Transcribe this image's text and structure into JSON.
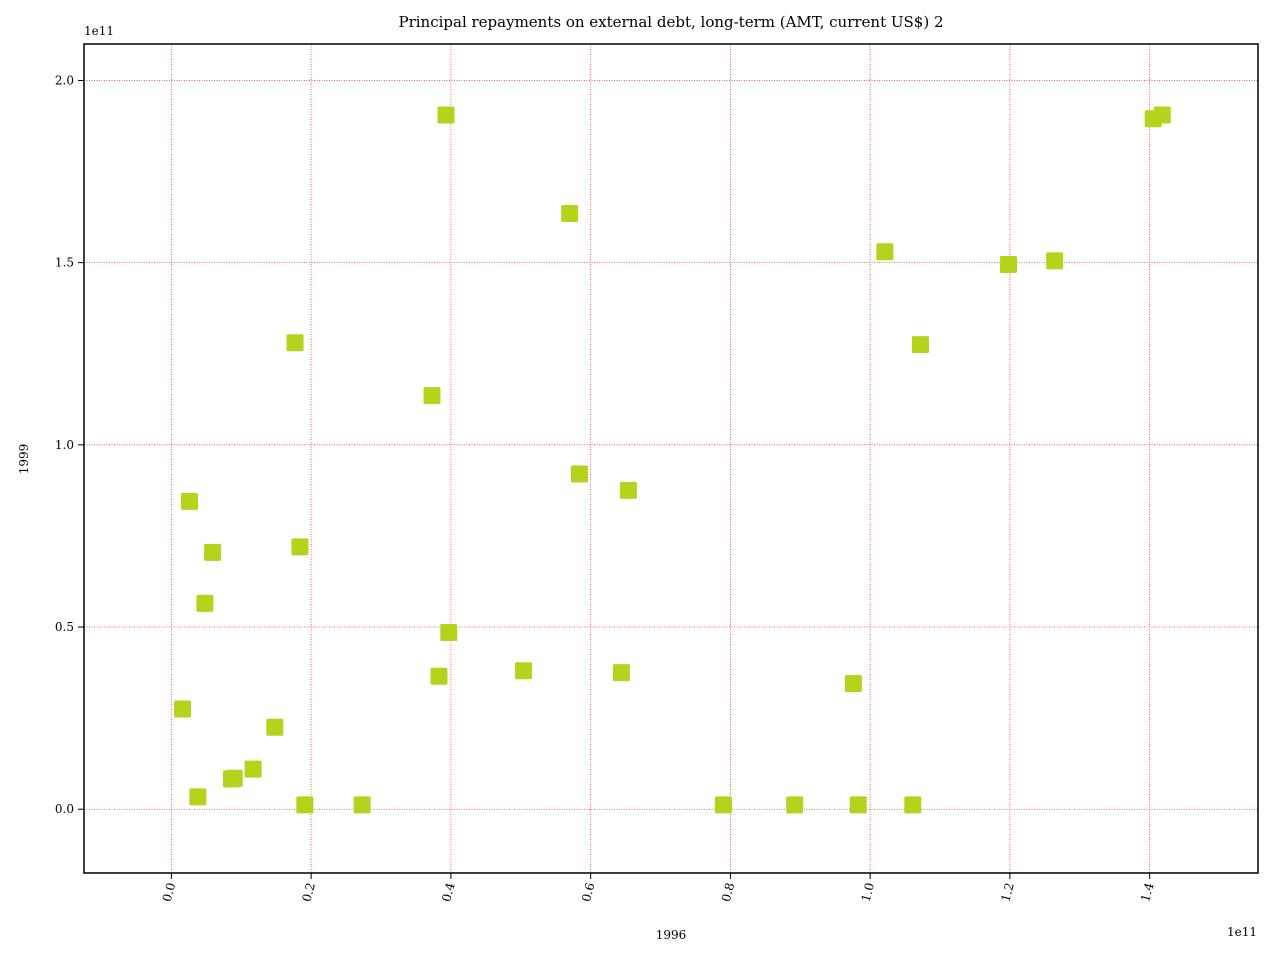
{
  "chart_data": {
    "type": "scatter",
    "title": "Principal repayments on external debt, long-term (AMT, current US$) 2",
    "xlabel": "1996",
    "ylabel": "1999",
    "x_offset_label": "1e11",
    "y_offset_label": "1e11",
    "xlim": [
      -12500000000.0,
      155500000000.0
    ],
    "ylim": [
      -17500000000.0,
      210000000000.0
    ],
    "x_ticks": [
      0,
      20000000000.0,
      40000000000.0,
      60000000000.0,
      80000000000.0,
      100000000000.0,
      120000000000.0,
      140000000000.0
    ],
    "x_tick_labels": [
      "0.0",
      "0.2",
      "0.4",
      "0.6",
      "0.8",
      "1.0",
      "1.2",
      "1.4"
    ],
    "y_ticks": [
      0,
      50000000000.0,
      100000000000.0,
      150000000000.0,
      200000000000.0
    ],
    "y_tick_labels": [
      "0.0",
      "0.5",
      "1.0",
      "1.5",
      "2.0"
    ],
    "grid": true,
    "colors": {
      "marker": "#b5d31d",
      "grid": "#e8453c"
    },
    "points": [
      {
        "x": 1600000000.0,
        "y": 27500000000.0
      },
      {
        "x": 2600000000.0,
        "y": 84500000000.0
      },
      {
        "x": 3800000000.0,
        "y": 3400000000.0
      },
      {
        "x": 4800000000.0,
        "y": 56500000000.0
      },
      {
        "x": 5900000000.0,
        "y": 70500000000.0
      },
      {
        "x": 8600000000.0,
        "y": 8300000000.0
      },
      {
        "x": 9000000000.0,
        "y": 8500000000.0
      },
      {
        "x": 11700000000.0,
        "y": 11000000000.0
      },
      {
        "x": 14800000000.0,
        "y": 22500000000.0
      },
      {
        "x": 17700000000.0,
        "y": 128000000000.0
      },
      {
        "x": 18400000000.0,
        "y": 72000000000.0
      },
      {
        "x": 19100000000.0,
        "y": 1200000000.0
      },
      {
        "x": 27300000000.0,
        "y": 1200000000.0
      },
      {
        "x": 37300000000.0,
        "y": 113500000000.0
      },
      {
        "x": 38300000000.0,
        "y": 36500000000.0
      },
      {
        "x": 39300000000.0,
        "y": 190500000000.0
      },
      {
        "x": 39700000000.0,
        "y": 48500000000.0
      },
      {
        "x": 50400000000.0,
        "y": 38000000000.0
      },
      {
        "x": 57000000000.0,
        "y": 163500000000.0
      },
      {
        "x": 58400000000.0,
        "y": 92000000000.0
      },
      {
        "x": 64400000000.0,
        "y": 37500000000.0
      },
      {
        "x": 65400000000.0,
        "y": 87500000000.0
      },
      {
        "x": 79000000000.0,
        "y": 1200000000.0
      },
      {
        "x": 89200000000.0,
        "y": 1200000000.0
      },
      {
        "x": 97600000000.0,
        "y": 34500000000.0
      },
      {
        "x": 98300000000.0,
        "y": 1200000000.0
      },
      {
        "x": 102100000000.0,
        "y": 153000000000.0
      },
      {
        "x": 106100000000.0,
        "y": 1200000000.0
      },
      {
        "x": 107200000000.0,
        "y": 127500000000.0
      },
      {
        "x": 119800000000.0,
        "y": 149500000000.0
      },
      {
        "x": 126400000000.0,
        "y": 150500000000.0
      },
      {
        "x": 140500000000.0,
        "y": 189500000000.0
      },
      {
        "x": 141800000000.0,
        "y": 190500000000.0
      }
    ]
  }
}
